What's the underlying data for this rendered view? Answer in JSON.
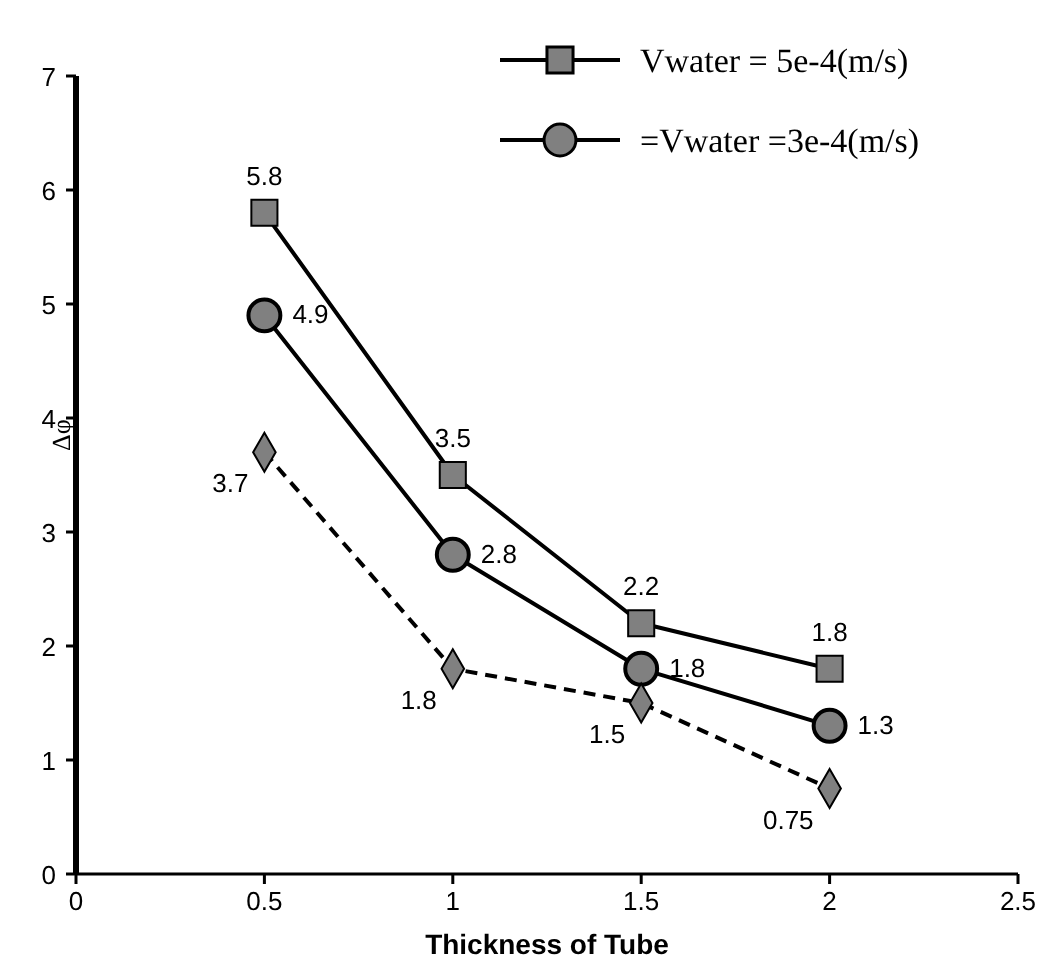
{
  "chart_data": {
    "type": "line",
    "xlabel": "Thickness of Tube",
    "ylabel": "Δφ",
    "x": [
      0.5,
      1,
      1.5,
      2
    ],
    "xlim": [
      0,
      2.5
    ],
    "xticks": [
      0,
      0.5,
      1,
      1.5,
      2,
      2.5
    ],
    "ylim": [
      0,
      7
    ],
    "yticks": [
      0,
      1,
      2,
      3,
      4,
      5,
      6,
      7
    ],
    "grid": false,
    "legend": "top right",
    "data_labels": true,
    "series": [
      {
        "name": "Vwater = 5e-4(m/s)",
        "color": "#000000",
        "marker": "square",
        "line_style": "solid",
        "values": [
          5.8,
          3.5,
          2.2,
          1.8
        ]
      },
      {
        "name": "=Vwater =3e-4(m/s)",
        "color": "#000000",
        "marker": "circle",
        "line_style": "solid",
        "values": [
          4.9,
          2.8,
          1.8,
          1.3
        ]
      },
      {
        "color": "#000000",
        "marker": "diamond",
        "line_style": "dashed",
        "values": [
          3.7,
          1.8,
          1.5,
          0.75
        ]
      }
    ]
  }
}
